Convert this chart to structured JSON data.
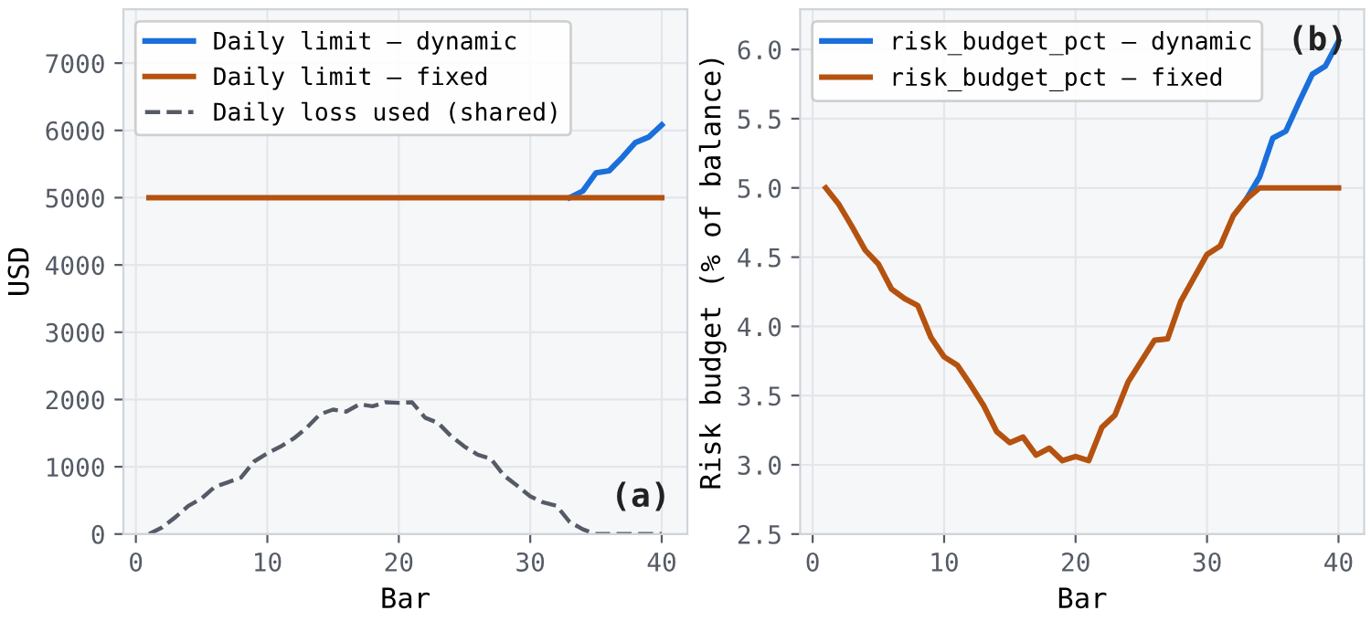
{
  "chart_data": [
    {
      "type": "line",
      "xlabel": "Bar",
      "ylabel": "USD",
      "annotations": [
        "(a)"
      ],
      "x": [
        1,
        2,
        3,
        4,
        5,
        6,
        7,
        8,
        9,
        10,
        11,
        12,
        13,
        14,
        15,
        16,
        17,
        18,
        19,
        20,
        21,
        22,
        23,
        24,
        25,
        26,
        27,
        28,
        29,
        30,
        31,
        32,
        33,
        34,
        35,
        36,
        37,
        38,
        39,
        40
      ],
      "series": [
        {
          "name": "Daily limit — dynamic",
          "color": "#1a6fdb",
          "values": [
            null,
            null,
            null,
            null,
            null,
            null,
            null,
            null,
            null,
            null,
            null,
            null,
            null,
            null,
            null,
            null,
            null,
            null,
            null,
            null,
            null,
            null,
            null,
            null,
            null,
            null,
            null,
            null,
            null,
            null,
            null,
            null,
            5000,
            5100,
            5370,
            5400,
            5600,
            5820,
            5900,
            6080
          ]
        },
        {
          "name": "Daily limit — fixed",
          "color": "#b5520f",
          "values": [
            5000,
            5000,
            5000,
            5000,
            5000,
            5000,
            5000,
            5000,
            5000,
            5000,
            5000,
            5000,
            5000,
            5000,
            5000,
            5000,
            5000,
            5000,
            5000,
            5000,
            5000,
            5000,
            5000,
            5000,
            5000,
            5000,
            5000,
            5000,
            5000,
            5000,
            5000,
            5000,
            5000,
            5000,
            5000,
            5000,
            5000,
            5000,
            5000,
            5000
          ]
        },
        {
          "name": "Daily loss used (shared)",
          "color": "#555b66",
          "line_style": "dashed",
          "values": [
            0,
            100,
            250,
            420,
            530,
            700,
            770,
            840,
            1080,
            1200,
            1300,
            1420,
            1580,
            1780,
            1850,
            1820,
            1930,
            1900,
            1960,
            1950,
            1960,
            1730,
            1650,
            1450,
            1300,
            1180,
            1120,
            870,
            720,
            560,
            470,
            420,
            180,
            70,
            0,
            0,
            0,
            0,
            0,
            0
          ]
        }
      ],
      "xlim": [
        -0.95,
        41.95
      ],
      "xticks": [
        0,
        10,
        20,
        30,
        40
      ],
      "ylim": [
        0,
        7800
      ],
      "yticks": [
        0,
        1000,
        2000,
        3000,
        4000,
        5000,
        6000,
        7000
      ],
      "grid": true,
      "legend": "top left",
      "line_style": "solid"
    },
    {
      "type": "line",
      "xlabel": "Bar",
      "ylabel": "Risk budget (% of balance)",
      "annotations": [
        "(b)"
      ],
      "x": [
        1,
        2,
        3,
        4,
        5,
        6,
        7,
        8,
        9,
        10,
        11,
        12,
        13,
        14,
        15,
        16,
        17,
        18,
        19,
        20,
        21,
        22,
        23,
        24,
        25,
        26,
        27,
        28,
        29,
        30,
        31,
        32,
        33,
        34,
        35,
        36,
        37,
        38,
        39,
        40
      ],
      "series": [
        {
          "name": "risk_budget_pct — dynamic",
          "color": "#1a6fdb",
          "values": [
            null,
            null,
            null,
            null,
            null,
            null,
            null,
            null,
            null,
            null,
            null,
            null,
            null,
            null,
            null,
            null,
            null,
            null,
            null,
            null,
            null,
            null,
            null,
            null,
            null,
            null,
            null,
            null,
            null,
            null,
            null,
            null,
            4.92,
            5.08,
            5.36,
            5.41,
            5.62,
            5.82,
            5.88,
            6.06
          ]
        },
        {
          "name": "risk_budget_pct — fixed",
          "color": "#b5520f",
          "values": [
            5.0,
            4.88,
            4.72,
            4.55,
            4.45,
            4.27,
            4.2,
            4.15,
            3.92,
            3.78,
            3.72,
            3.58,
            3.43,
            3.24,
            3.16,
            3.2,
            3.07,
            3.12,
            3.03,
            3.06,
            3.03,
            3.27,
            3.36,
            3.6,
            3.75,
            3.9,
            3.91,
            4.18,
            4.35,
            4.52,
            4.58,
            4.8,
            4.92,
            5.0,
            5.0,
            5.0,
            5.0,
            5.0,
            5.0,
            5.0
          ]
        }
      ],
      "xlim": [
        -0.95,
        41.95
      ],
      "xticks": [
        0,
        10,
        20,
        30,
        40
      ],
      "ylim": [
        2.5,
        6.29
      ],
      "yticks": [
        2.5,
        {
          "value": 3.0,
          "label": "3.0"
        },
        3.5,
        {
          "value": 4.0,
          "label": "4.0"
        },
        4.5,
        {
          "value": 5.0,
          "label": "5.0"
        },
        5.5,
        {
          "value": 6.0,
          "label": "6.0"
        }
      ],
      "grid": true,
      "legend": "top left",
      "line_style": "solid"
    }
  ]
}
